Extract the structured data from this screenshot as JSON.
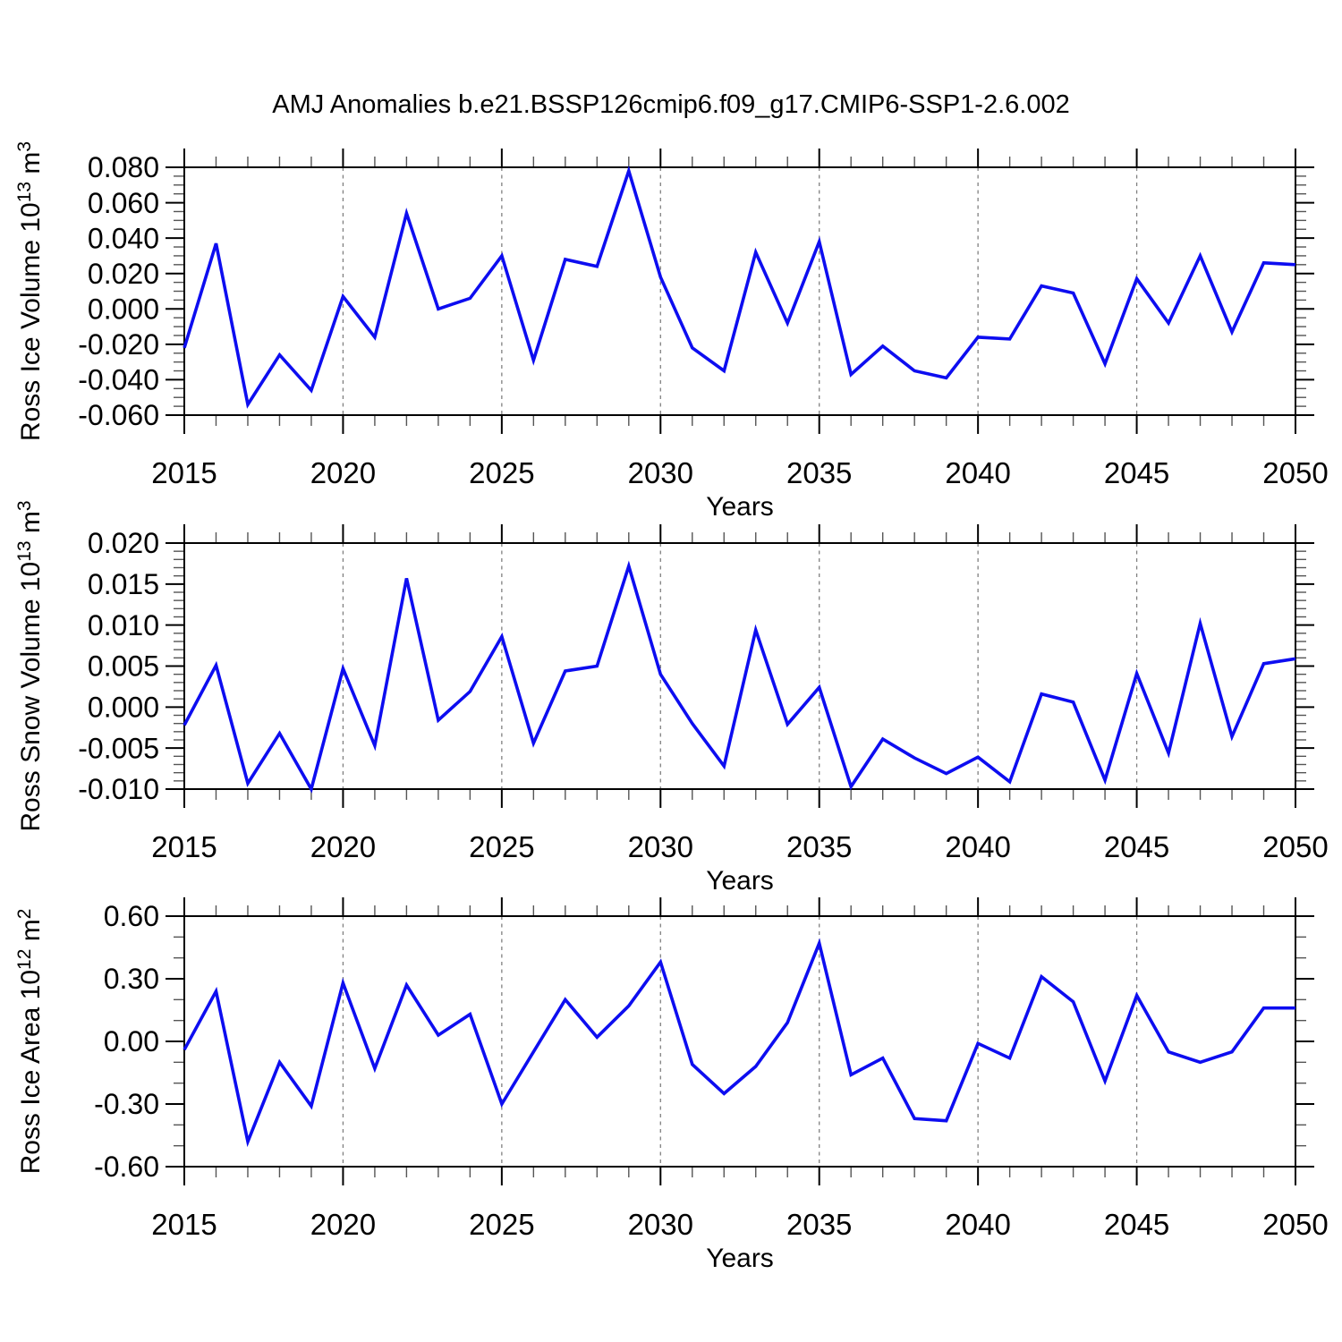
{
  "figure": {
    "title": "AMJ Anomalies b.e21.BSSP126cmip6.f09_g17.CMIP6-SSP1-2.6.002",
    "colors": {
      "line": "#0d0df0",
      "gridline": "#808080",
      "axis": "#000000",
      "minor_tick": "#555555",
      "background": "#ffffff",
      "text": "#000000"
    }
  },
  "chart_data": [
    {
      "type": "line",
      "name": "ross-ice-volume",
      "ylabel_plain": "Ross Ice Volume 10^13 m^3",
      "ylabel_parts": [
        {
          "t": "Ross Ice Volume 10"
        },
        {
          "t": "13",
          "sup": true
        },
        {
          "t": " m"
        },
        {
          "t": "3",
          "sup": true
        }
      ],
      "xlabel": "Years",
      "xlim": [
        2015,
        2050
      ],
      "ylim": [
        -0.06,
        0.08
      ],
      "xticks": [
        2015,
        2020,
        2025,
        2030,
        2035,
        2040,
        2045,
        2050
      ],
      "xminor_step": 1,
      "yticks": [
        0.08,
        0.06,
        0.04,
        0.02,
        0,
        -0.02,
        -0.04,
        -0.06
      ],
      "ytick_labels": [
        "0.080",
        "0.060",
        "0.040",
        "0.020",
        "0.000",
        "-0.020",
        "-0.040",
        "-0.060"
      ],
      "yminor_step": 0.005,
      "gridlines_x": [
        2020,
        2025,
        2030,
        2035,
        2040,
        2045
      ],
      "grid": "dashed-vertical",
      "legend": "none",
      "x": [
        2015,
        2016,
        2017,
        2018,
        2019,
        2020,
        2021,
        2022,
        2023,
        2024,
        2025,
        2026,
        2027,
        2028,
        2029,
        2030,
        2031,
        2032,
        2033,
        2034,
        2035,
        2036,
        2037,
        2038,
        2039,
        2040,
        2041,
        2042,
        2043,
        2044,
        2045,
        2046,
        2047,
        2048,
        2049,
        2050
      ],
      "values": [
        -0.022,
        0.037,
        -0.054,
        -0.026,
        -0.046,
        0.007,
        -0.016,
        0.054,
        0.0,
        0.006,
        0.03,
        -0.029,
        0.028,
        0.024,
        0.078,
        0.018,
        -0.022,
        -0.035,
        0.032,
        -0.008,
        0.038,
        -0.037,
        -0.021,
        -0.035,
        -0.039,
        -0.016,
        -0.017,
        0.013,
        0.009,
        -0.031,
        0.017,
        -0.008,
        0.03,
        -0.013,
        0.026,
        0.025
      ]
    },
    {
      "type": "line",
      "name": "ross-snow-volume",
      "ylabel_plain": "Ross Snow Volume 10^13 m^3",
      "ylabel_parts": [
        {
          "t": "Ross Snow Volume 10"
        },
        {
          "t": "13",
          "sup": true
        },
        {
          "t": " m"
        },
        {
          "t": "3",
          "sup": true
        }
      ],
      "xlabel": "Years",
      "xlim": [
        2015,
        2050
      ],
      "ylim": [
        -0.01,
        0.02
      ],
      "xticks": [
        2015,
        2020,
        2025,
        2030,
        2035,
        2040,
        2045,
        2050
      ],
      "xminor_step": 1,
      "yticks": [
        0.02,
        0.015,
        0.01,
        0.005,
        0,
        -0.005,
        -0.01
      ],
      "ytick_labels": [
        "0.020",
        "0.015",
        "0.010",
        "0.005",
        "0.000",
        "-0.005",
        "-0.010"
      ],
      "yminor_step": 0.001,
      "gridlines_x": [
        2020,
        2025,
        2030,
        2035,
        2040,
        2045
      ],
      "grid": "dashed-vertical",
      "legend": "none",
      "x": [
        2015,
        2016,
        2017,
        2018,
        2019,
        2020,
        2021,
        2022,
        2023,
        2024,
        2025,
        2026,
        2027,
        2028,
        2029,
        2030,
        2031,
        2032,
        2033,
        2034,
        2035,
        2036,
        2037,
        2038,
        2039,
        2040,
        2041,
        2042,
        2043,
        2044,
        2045,
        2046,
        2047,
        2048,
        2049,
        2050
      ],
      "values": [
        -0.0022,
        0.0051,
        -0.0093,
        -0.0032,
        -0.01,
        0.0047,
        -0.0047,
        0.0157,
        -0.0016,
        0.0019,
        0.0086,
        -0.0044,
        0.0044,
        0.005,
        0.0172,
        0.004,
        -0.002,
        -0.0072,
        0.0094,
        -0.0021,
        0.0024,
        -0.0097,
        -0.0039,
        -0.0062,
        -0.0081,
        -0.0061,
        -0.0091,
        0.0016,
        0.0006,
        -0.0089,
        0.0041,
        -0.0056,
        0.0102,
        -0.0036,
        0.0053,
        0.0059
      ]
    },
    {
      "type": "line",
      "name": "ross-ice-area",
      "ylabel_plain": "Ross Ice Area 10^12 m^2",
      "ylabel_parts": [
        {
          "t": "Ross Ice Area 10"
        },
        {
          "t": "12",
          "sup": true
        },
        {
          "t": " m"
        },
        {
          "t": "2",
          "sup": true
        }
      ],
      "xlabel": "Years",
      "xlim": [
        2015,
        2050
      ],
      "ylim": [
        -0.6,
        0.6
      ],
      "xticks": [
        2015,
        2020,
        2025,
        2030,
        2035,
        2040,
        2045,
        2050
      ],
      "xminor_step": 1,
      "yticks": [
        0.6,
        0.3,
        0,
        -0.3,
        -0.6
      ],
      "ytick_labels": [
        "0.60",
        "0.30",
        "0.00",
        "-0.30",
        "-0.60"
      ],
      "yminor_step": 0.1,
      "gridlines_x": [
        2020,
        2025,
        2030,
        2035,
        2040,
        2045
      ],
      "grid": "dashed-vertical",
      "legend": "none",
      "x": [
        2015,
        2016,
        2017,
        2018,
        2019,
        2020,
        2021,
        2022,
        2023,
        2024,
        2025,
        2026,
        2027,
        2028,
        2029,
        2030,
        2031,
        2032,
        2033,
        2034,
        2035,
        2036,
        2037,
        2038,
        2039,
        2040,
        2041,
        2042,
        2043,
        2044,
        2045,
        2046,
        2047,
        2048,
        2049,
        2050
      ],
      "values": [
        -0.04,
        0.24,
        -0.48,
        -0.1,
        -0.31,
        0.28,
        -0.13,
        0.27,
        0.03,
        0.13,
        -0.3,
        -0.05,
        0.2,
        0.02,
        0.17,
        0.38,
        -0.11,
        -0.25,
        -0.12,
        0.09,
        0.47,
        -0.16,
        -0.08,
        -0.37,
        -0.38,
        -0.01,
        -0.08,
        0.31,
        0.19,
        -0.19,
        0.22,
        -0.05,
        -0.1,
        -0.05,
        0.16,
        0.16
      ]
    }
  ]
}
